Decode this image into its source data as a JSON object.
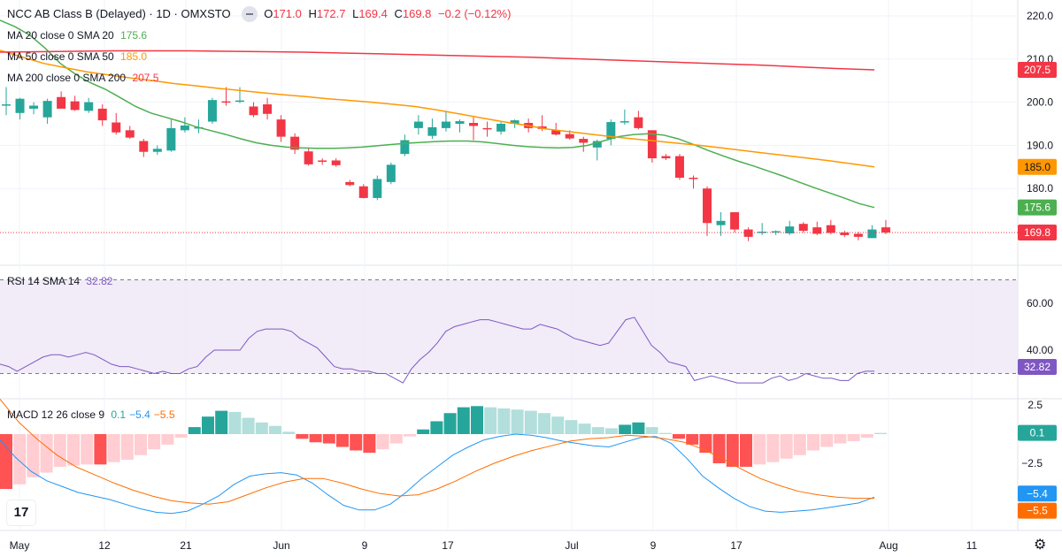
{
  "header": {
    "symbol": "NCC AB Class B (Delayed) · 1D · OMXSTO",
    "open_label": "O",
    "open": "171.0",
    "high_label": "H",
    "high": "172.7",
    "low_label": "L",
    "low": "169.4",
    "close_label": "C",
    "close": "169.8",
    "change": "−0.2 (−0.12%)",
    "ma20_label": "MA 20 close 0 SMA 20",
    "ma20_value": "175.6",
    "ma50_label": "MA 50 close 0 SMA 50",
    "ma50_value": "185.0",
    "ma200_label": "MA 200 close 0 SMA 200",
    "ma200_value": "207.5",
    "rsi_label": "RSI 14 SMA 14",
    "rsi_value": "32.82",
    "macd_label": "MACD 12 26 close 9",
    "macd_v1": "0.1",
    "macd_v2": "−5.4",
    "macd_v3": "−5.5"
  },
  "colors": {
    "up": "#26a69a",
    "down": "#f23645",
    "ma20": "#4caf50",
    "ma50": "#ff9800",
    "ma200": "#f23645",
    "rsi": "#7e57c2",
    "macd": "#2196f3",
    "signal": "#ff6d00"
  },
  "chart_data": [
    {
      "type": "candlestick",
      "title": "NCC AB Class B (Delayed) · 1D · OMXSTO",
      "x_ticks": [
        "May",
        "12",
        "21",
        "Jun",
        "9",
        "17",
        "Jul",
        "9",
        "17",
        "Aug",
        "11"
      ],
      "y_ticks": [
        "220.0",
        "210.0",
        "200.0",
        "190.0",
        "180.0"
      ],
      "ylim": [
        163,
        222
      ],
      "candles": [
        {
          "o": 199.3,
          "h": 203.5,
          "l": 197.0,
          "c": 199.5
        },
        {
          "o": 197.5,
          "h": 201.0,
          "l": 196.0,
          "c": 200.8
        },
        {
          "o": 198.5,
          "h": 200.0,
          "l": 197.2,
          "c": 199.2
        },
        {
          "o": 196.5,
          "h": 200.8,
          "l": 195.0,
          "c": 200.3
        },
        {
          "o": 201.2,
          "h": 202.5,
          "l": 198.5,
          "c": 198.5
        },
        {
          "o": 200.2,
          "h": 201.5,
          "l": 198.0,
          "c": 198.2
        },
        {
          "o": 198.0,
          "h": 201.0,
          "l": 197.5,
          "c": 200.0
        },
        {
          "o": 198.5,
          "h": 199.5,
          "l": 194.5,
          "c": 195.8
        },
        {
          "o": 195.3,
          "h": 197.5,
          "l": 192.5,
          "c": 193.0
        },
        {
          "o": 193.5,
          "h": 194.5,
          "l": 191.5,
          "c": 191.8
        },
        {
          "o": 191.0,
          "h": 191.5,
          "l": 187.3,
          "c": 188.5
        },
        {
          "o": 188.5,
          "h": 190.0,
          "l": 187.8,
          "c": 189.2
        },
        {
          "o": 188.8,
          "h": 196.0,
          "l": 188.5,
          "c": 194.0
        },
        {
          "o": 193.5,
          "h": 196.5,
          "l": 193.0,
          "c": 194.6
        },
        {
          "o": 194.0,
          "h": 196.0,
          "l": 192.8,
          "c": 194.2
        },
        {
          "o": 195.5,
          "h": 201.0,
          "l": 195.0,
          "c": 200.5
        },
        {
          "o": 200.2,
          "h": 203.5,
          "l": 199.2,
          "c": 200.0
        },
        {
          "o": 200.1,
          "h": 203.5,
          "l": 199.8,
          "c": 200.4
        },
        {
          "o": 199.0,
          "h": 200.0,
          "l": 196.5,
          "c": 197.0
        },
        {
          "o": 199.5,
          "h": 201.0,
          "l": 196.0,
          "c": 197.3
        },
        {
          "o": 196.0,
          "h": 197.0,
          "l": 190.8,
          "c": 192.0
        },
        {
          "o": 192.0,
          "h": 192.8,
          "l": 188.0,
          "c": 189.0
        },
        {
          "o": 188.6,
          "h": 189.5,
          "l": 185.3,
          "c": 185.6
        },
        {
          "o": 186.5,
          "h": 187.0,
          "l": 185.5,
          "c": 186.2
        },
        {
          "o": 186.5,
          "h": 187.0,
          "l": 185.0,
          "c": 185.4
        },
        {
          "o": 181.5,
          "h": 182.0,
          "l": 180.5,
          "c": 180.8
        },
        {
          "o": 180.5,
          "h": 181.0,
          "l": 177.7,
          "c": 177.8
        },
        {
          "o": 177.8,
          "h": 183.0,
          "l": 177.3,
          "c": 182.2
        },
        {
          "o": 181.5,
          "h": 186.0,
          "l": 181.0,
          "c": 185.5
        },
        {
          "o": 188.0,
          "h": 192.5,
          "l": 187.5,
          "c": 191.2
        },
        {
          "o": 194.0,
          "h": 197.0,
          "l": 192.5,
          "c": 195.5
        },
        {
          "o": 192.2,
          "h": 196.2,
          "l": 191.5,
          "c": 194.2
        },
        {
          "o": 194.0,
          "h": 198.0,
          "l": 193.2,
          "c": 195.5
        },
        {
          "o": 195.0,
          "h": 196.0,
          "l": 193.0,
          "c": 195.6
        },
        {
          "o": 195.2,
          "h": 196.5,
          "l": 191.2,
          "c": 194.5
        },
        {
          "o": 194.0,
          "h": 195.5,
          "l": 192.0,
          "c": 193.7
        },
        {
          "o": 193.2,
          "h": 195.5,
          "l": 192.5,
          "c": 195.0
        },
        {
          "o": 195.0,
          "h": 196.0,
          "l": 194.0,
          "c": 195.8
        },
        {
          "o": 195.2,
          "h": 196.2,
          "l": 193.0,
          "c": 194.0
        },
        {
          "o": 194.4,
          "h": 197.0,
          "l": 193.3,
          "c": 193.8
        },
        {
          "o": 193.5,
          "h": 195.2,
          "l": 192.3,
          "c": 192.5
        },
        {
          "o": 192.6,
          "h": 193.5,
          "l": 191.3,
          "c": 191.6
        },
        {
          "o": 191.5,
          "h": 192.0,
          "l": 188.5,
          "c": 190.6
        },
        {
          "o": 189.5,
          "h": 191.3,
          "l": 186.5,
          "c": 191.0
        },
        {
          "o": 191.5,
          "h": 196.0,
          "l": 190.0,
          "c": 195.4
        },
        {
          "o": 195.5,
          "h": 198.3,
          "l": 194.8,
          "c": 195.6
        },
        {
          "o": 196.5,
          "h": 198.0,
          "l": 193.7,
          "c": 194.0
        },
        {
          "o": 193.5,
          "h": 193.5,
          "l": 186.0,
          "c": 187.0
        },
        {
          "o": 187.5,
          "h": 188.0,
          "l": 186.6,
          "c": 187.0
        },
        {
          "o": 187.5,
          "h": 188.0,
          "l": 182.0,
          "c": 182.5
        },
        {
          "o": 182.5,
          "h": 183.0,
          "l": 180.0,
          "c": 182.2
        },
        {
          "o": 180.0,
          "h": 180.5,
          "l": 169.0,
          "c": 172.0
        },
        {
          "o": 171.5,
          "h": 174.5,
          "l": 169.0,
          "c": 172.5
        },
        {
          "o": 174.5,
          "h": 174.5,
          "l": 169.8,
          "c": 170.5
        },
        {
          "o": 170.5,
          "h": 171.0,
          "l": 167.8,
          "c": 168.8
        },
        {
          "o": 169.7,
          "h": 172.0,
          "l": 169.2,
          "c": 170.0
        },
        {
          "o": 169.8,
          "h": 170.3,
          "l": 169.2,
          "c": 170.1
        },
        {
          "o": 169.6,
          "h": 172.5,
          "l": 169.2,
          "c": 171.2
        },
        {
          "o": 171.8,
          "h": 172.2,
          "l": 169.8,
          "c": 170.2
        },
        {
          "o": 171.0,
          "h": 172.3,
          "l": 169.2,
          "c": 169.5
        },
        {
          "o": 171.5,
          "h": 172.7,
          "l": 169.4,
          "c": 169.7
        },
        {
          "o": 169.8,
          "h": 170.2,
          "l": 168.8,
          "c": 169.2
        },
        {
          "o": 169.5,
          "h": 170.0,
          "l": 168.0,
          "c": 168.8
        },
        {
          "o": 168.5,
          "h": 171.5,
          "l": 168.5,
          "c": 170.5
        },
        {
          "o": 171.0,
          "h": 172.7,
          "l": 169.4,
          "c": 169.8
        }
      ],
      "series": [
        {
          "name": "MA 20 close 0 SMA 20",
          "values": [
            219.0,
            217.5,
            215.5,
            212.5,
            209.0,
            206.5,
            204.5,
            203.0,
            201.0,
            199.0,
            197.5,
            196.5,
            195.5,
            194.3,
            193.4,
            192.5,
            191.5,
            190.6,
            190.0,
            189.6,
            189.4,
            189.3,
            189.3,
            189.4,
            189.6,
            189.9,
            190.2,
            190.5,
            190.7,
            190.9,
            191.0,
            191.0,
            190.8,
            190.4,
            190.0,
            189.7,
            189.5,
            189.4,
            189.5,
            190.0,
            191.0,
            192.0,
            192.5,
            192.7,
            192.4,
            191.5,
            190.2,
            188.8,
            187.5,
            186.3,
            185.2,
            184.0,
            182.8,
            181.5,
            180.2,
            179.0,
            177.8,
            176.5,
            175.6
          ]
        },
        {
          "name": "MA 50 close 0 SMA 50",
          "values": [
            212.0,
            210.5,
            209.0,
            208.0,
            207.0,
            206.3,
            205.6,
            205.0,
            204.3,
            203.8,
            203.2,
            202.7,
            202.2,
            201.7,
            201.3,
            200.8,
            200.4,
            200.0,
            199.5,
            199.0,
            198.2,
            197.3,
            196.4,
            195.5,
            194.7,
            193.8,
            193.2,
            192.6,
            192.0,
            191.5,
            191.0,
            190.5,
            190.0,
            189.4,
            188.8,
            188.2,
            187.6,
            187.0,
            186.4,
            185.7,
            185.0
          ]
        },
        {
          "name": "MA 200 close 0 SMA 200",
          "values": [
            211.6,
            211.7,
            211.8,
            211.9,
            211.9,
            211.9,
            211.8,
            211.7,
            211.6,
            211.4,
            211.2,
            211.0,
            210.8,
            210.6,
            210.4,
            210.1,
            209.8,
            209.5,
            209.2,
            208.9,
            208.6,
            208.2,
            207.8,
            207.5
          ]
        }
      ],
      "last_price": "169.8"
    },
    {
      "type": "line",
      "title": "RSI 14 SMA 14",
      "y_ticks": [
        "60.00",
        "40.00"
      ],
      "ylim": [
        20,
        80
      ],
      "bands": [
        70,
        30
      ],
      "values": [
        34,
        33,
        31,
        33,
        35,
        37,
        38,
        38,
        37,
        38,
        39,
        38,
        36,
        34,
        33,
        33,
        32,
        31,
        30,
        31,
        30,
        30,
        32,
        33,
        37,
        40,
        40,
        40,
        40,
        45,
        48,
        49,
        49,
        49,
        48,
        45,
        43,
        41,
        37,
        33,
        32,
        32,
        31,
        31,
        30,
        30,
        28,
        26,
        32,
        36,
        39,
        43,
        48,
        50,
        51,
        52,
        53,
        53,
        52,
        51,
        50,
        49,
        49,
        51,
        50,
        49,
        47,
        45,
        44,
        43,
        42,
        43,
        48,
        53,
        54,
        48,
        42,
        39,
        35,
        34,
        33,
        27,
        28,
        29,
        28,
        27,
        26,
        26,
        26,
        26,
        28,
        29,
        27,
        28,
        30,
        29,
        28,
        28,
        27,
        27,
        30,
        31,
        31
      ],
      "last_value": "32.82"
    },
    {
      "type": "bar+line",
      "title": "MACD 12 26 close 9",
      "y_ticks": [
        "2.5",
        "−2.5"
      ],
      "ylim": [
        -8.5,
        3.5
      ],
      "histogram": [
        -4.7,
        -4.3,
        -3.7,
        -3.3,
        -2.8,
        -2.7,
        -2.6,
        -2.6,
        -2.4,
        -2.2,
        -1.8,
        -1.3,
        -0.9,
        -0.3,
        0.6,
        1.5,
        2.0,
        1.9,
        1.4,
        1.0,
        0.7,
        0.2,
        -0.4,
        -0.7,
        -0.8,
        -1.1,
        -1.4,
        -1.6,
        -1.3,
        -0.8,
        -0.2,
        0.4,
        1.1,
        1.8,
        2.3,
        2.4,
        2.3,
        2.2,
        2.1,
        2.0,
        1.8,
        1.5,
        1.2,
        0.9,
        0.6,
        0.5,
        0.8,
        1.0,
        0.6,
        0.1,
        -0.4,
        -0.9,
        -1.6,
        -2.5,
        -2.8,
        -2.8,
        -2.6,
        -2.4,
        -2.1,
        -1.8,
        -1.4,
        -1.1,
        -0.8,
        -0.6,
        -0.3,
        0.1
      ],
      "series": [
        {
          "name": "MACD",
          "values": [
            -0.5,
            -2.0,
            -3.2,
            -4.0,
            -4.5,
            -5.0,
            -5.3,
            -5.6,
            -6.0,
            -6.4,
            -6.7,
            -6.8,
            -6.6,
            -6.0,
            -5.3,
            -4.3,
            -3.6,
            -3.4,
            -3.3,
            -3.5,
            -4.2,
            -5.2,
            -6.1,
            -6.5,
            -6.5,
            -6.0,
            -5.0,
            -3.8,
            -2.8,
            -1.8,
            -1.1,
            -0.5,
            -0.2,
            0.0,
            -0.1,
            -0.3,
            -0.6,
            -0.8,
            -1.0,
            -1.1,
            -0.7,
            -0.3,
            -0.2,
            -0.8,
            -2.1,
            -3.6,
            -4.6,
            -5.5,
            -6.2,
            -6.6,
            -6.7,
            -6.6,
            -6.5,
            -6.3,
            -6.1,
            -5.9,
            -5.4
          ]
        },
        {
          "name": "Signal",
          "values": [
            3.0,
            1.0,
            -0.5,
            -1.8,
            -2.8,
            -3.5,
            -4.2,
            -4.8,
            -5.3,
            -5.7,
            -5.9,
            -6.0,
            -5.8,
            -5.2,
            -4.6,
            -4.1,
            -3.8,
            -3.8,
            -4.2,
            -4.7,
            -5.1,
            -5.3,
            -5.2,
            -4.7,
            -4.0,
            -3.2,
            -2.5,
            -1.9,
            -1.4,
            -1.0,
            -0.6,
            -0.4,
            -0.3,
            -0.1,
            -0.2,
            -0.4,
            -0.7,
            -1.3,
            -2.1,
            -3.0,
            -3.8,
            -4.4,
            -4.9,
            -5.2,
            -5.4,
            -5.5,
            -5.5
          ]
        }
      ],
      "last_values": [
        "0.1",
        "−5.4",
        "−5.5"
      ]
    }
  ]
}
